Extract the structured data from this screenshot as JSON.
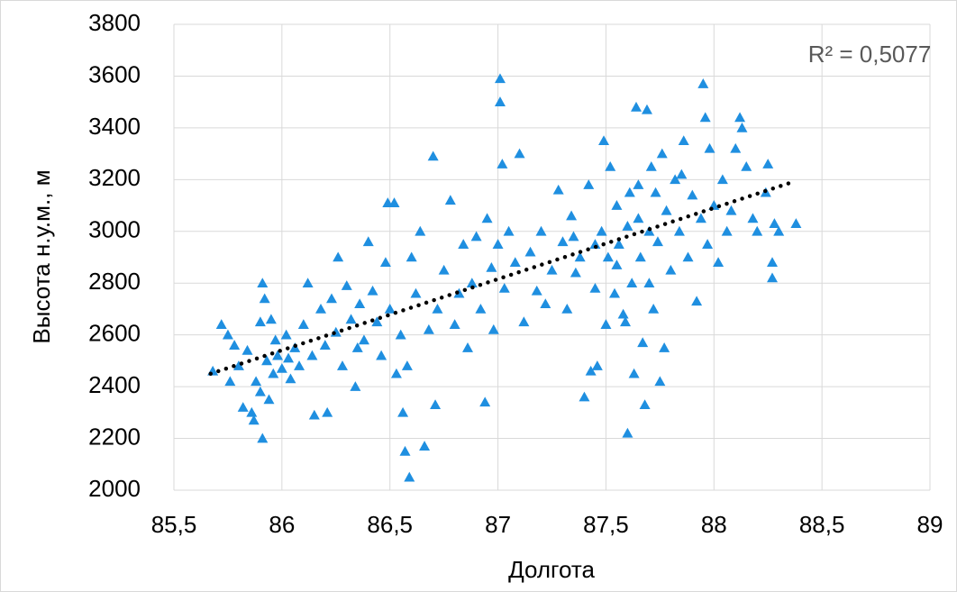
{
  "chart_data": {
    "type": "scatter",
    "xlabel": "Долгота",
    "ylabel": "Высота н.у.м., м",
    "annotation": "R² = 0,5077",
    "color": "#1f8fe0",
    "grid": true,
    "xlim": [
      85.5,
      89
    ],
    "ylim": [
      2000,
      3800
    ],
    "xticks": [
      {
        "value": 85.5,
        "label": "85,5"
      },
      86,
      {
        "value": 86.5,
        "label": "86,5"
      },
      87,
      {
        "value": 87.5,
        "label": "87,5"
      },
      88,
      {
        "value": 88.5,
        "label": "88,5"
      },
      89
    ],
    "yticks": [
      2000,
      2200,
      2400,
      2600,
      2800,
      3000,
      3200,
      3400,
      3600,
      3800
    ],
    "trendline": {
      "x": [
        85.67,
        88.38
      ],
      "y": [
        2450,
        3195
      ]
    },
    "x": [
      85.68,
      85.72,
      85.75,
      85.78,
      85.8,
      85.82,
      85.84,
      85.86,
      85.87,
      85.88,
      85.9,
      85.9,
      85.91,
      85.91,
      85.92,
      85.93,
      85.94,
      85.95,
      85.96,
      85.97,
      85.98,
      86.0,
      86.02,
      86.04,
      86.06,
      86.08,
      86.1,
      86.12,
      86.14,
      86.15,
      86.18,
      86.2,
      86.21,
      86.23,
      86.25,
      86.26,
      86.28,
      86.3,
      86.32,
      86.34,
      86.36,
      86.38,
      86.4,
      86.42,
      86.44,
      86.46,
      86.48,
      86.49,
      86.5,
      86.52,
      86.53,
      86.55,
      86.56,
      86.57,
      86.58,
      86.59,
      86.6,
      86.62,
      86.64,
      86.66,
      86.68,
      86.7,
      86.71,
      86.72,
      86.75,
      86.78,
      86.8,
      86.82,
      86.84,
      86.86,
      86.88,
      86.9,
      86.92,
      86.94,
      86.95,
      86.97,
      86.98,
      87.0,
      87.01,
      87.01,
      87.02,
      87.03,
      87.05,
      87.08,
      87.1,
      87.12,
      87.15,
      87.18,
      87.2,
      87.22,
      87.25,
      87.28,
      87.3,
      87.32,
      87.34,
      87.36,
      87.38,
      87.4,
      87.42,
      87.43,
      87.45,
      87.46,
      87.48,
      87.49,
      87.5,
      87.51,
      87.52,
      87.54,
      87.55,
      87.56,
      87.58,
      87.59,
      87.6,
      87.61,
      87.62,
      87.63,
      87.64,
      87.65,
      87.66,
      87.67,
      87.68,
      87.69,
      87.7,
      87.71,
      87.72,
      87.73,
      87.74,
      87.75,
      87.76,
      87.77,
      87.78,
      87.8,
      87.82,
      87.84,
      87.86,
      87.88,
      87.9,
      87.92,
      87.94,
      87.95,
      87.96,
      87.97,
      87.98,
      88.0,
      88.02,
      88.04,
      88.06,
      88.08,
      88.1,
      88.12,
      88.13,
      88.15,
      88.18,
      88.2,
      88.24,
      88.25,
      88.27,
      88.27,
      88.28,
      88.3,
      88.38,
      85.76,
      86.03,
      86.35,
      87.35,
      87.65,
      87.55,
      87.7,
      87.85,
      87.45,
      87.6
    ],
    "values": [
      2460,
      2640,
      2600,
      2560,
      2480,
      2320,
      2540,
      2300,
      2270,
      2420,
      2380,
      2650,
      2800,
      2200,
      2740,
      2500,
      2350,
      2660,
      2450,
      2580,
      2520,
      2470,
      2600,
      2430,
      2550,
      2480,
      2640,
      2800,
      2520,
      2290,
      2700,
      2560,
      2300,
      2740,
      2610,
      2900,
      2480,
      2790,
      2660,
      2400,
      2720,
      2580,
      2960,
      2770,
      2650,
      2520,
      2880,
      3110,
      2700,
      3110,
      2450,
      2600,
      2300,
      2150,
      2480,
      2050,
      2900,
      2760,
      3000,
      2170,
      2620,
      3290,
      2330,
      2700,
      2850,
      3120,
      2640,
      2760,
      2950,
      2550,
      2800,
      2980,
      2700,
      2340,
      3050,
      2860,
      2620,
      2950,
      3590,
      3500,
      3260,
      2780,
      3000,
      2880,
      3300,
      2650,
      2920,
      2770,
      3000,
      2720,
      2850,
      3160,
      2960,
      2700,
      3060,
      2840,
      2900,
      2360,
      3180,
      2460,
      2780,
      2480,
      3000,
      3350,
      2640,
      2900,
      3250,
      2760,
      3100,
      2950,
      2680,
      2650,
      2220,
      3150,
      2800,
      2450,
      3480,
      3050,
      2900,
      2570,
      2330,
      3470,
      3000,
      3250,
      2700,
      3150,
      2960,
      2420,
      3300,
      2550,
      3080,
      2850,
      3200,
      3000,
      3350,
      2900,
      3140,
      2730,
      3050,
      3570,
      3440,
      2950,
      3320,
      3100,
      2880,
      3200,
      3000,
      3080,
      3320,
      3440,
      3400,
      3250,
      3050,
      3000,
      3150,
      3260,
      2820,
      2880,
      3030,
      3000,
      3030,
      2420,
      2510,
      2550,
      2980,
      3180,
      2870,
      2800,
      3220,
      2950,
      3020
    ]
  }
}
